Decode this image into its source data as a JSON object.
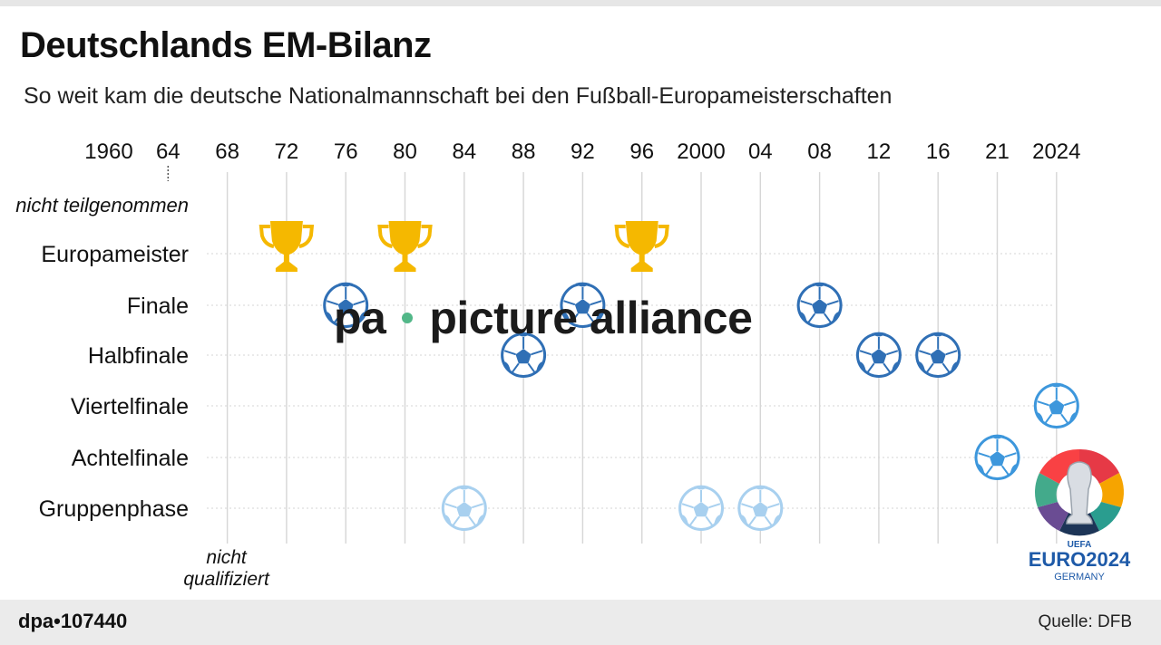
{
  "header": {
    "title": "Deutschlands EM-Bilanz",
    "subtitle": "So weit kam die deutsche Nationalmannschaft bei den Fußball-Europameisterschaften"
  },
  "footer": {
    "id_label": "dpa•107440",
    "source": "Quelle: DFB"
  },
  "watermark": {
    "left": "pa",
    "right": "picture alliance",
    "dot_color": "#52b788"
  },
  "logo": {
    "brand": "UEFA",
    "name": "EURO2024",
    "country": "GERMANY"
  },
  "colors": {
    "trophy": "#f5b800",
    "ball_dark": "#2f6fb5",
    "ball_mid": "#3d97dc",
    "ball_light": "#a8d0ef",
    "grid": "#d6d6d6"
  },
  "chart_data": {
    "type": "scatter",
    "title": "Deutschlands EM-Bilanz",
    "subtitle": "So weit kam die deutsche Nationalmannschaft bei den Fußball-Europameisterschaften",
    "x_tick_labels": [
      "1960",
      "64",
      "68",
      "72",
      "76",
      "80",
      "84",
      "88",
      "92",
      "96",
      "2000",
      "04",
      "08",
      "12",
      "16",
      "21",
      "2024"
    ],
    "years": [
      1960,
      1964,
      1968,
      1972,
      1976,
      1980,
      1984,
      1988,
      1992,
      1996,
      2000,
      2004,
      2008,
      2012,
      2016,
      2021,
      2024
    ],
    "stages": [
      "nicht teilgenommen",
      "Europameister",
      "Finale",
      "Halbfinale",
      "Viertelfinale",
      "Achtelfinale",
      "Gruppenphase"
    ],
    "bottom_label": "nicht qualifiziert",
    "results": [
      {
        "year": 1960,
        "stage": "nicht teilgenommen"
      },
      {
        "year": 1964,
        "stage": "nicht teilgenommen"
      },
      {
        "year": 1968,
        "stage": "nicht qualifiziert"
      },
      {
        "year": 1972,
        "stage": "Europameister"
      },
      {
        "year": 1976,
        "stage": "Finale"
      },
      {
        "year": 1980,
        "stage": "Europameister"
      },
      {
        "year": 1984,
        "stage": "Gruppenphase"
      },
      {
        "year": 1988,
        "stage": "Halbfinale"
      },
      {
        "year": 1992,
        "stage": "Finale"
      },
      {
        "year": 1996,
        "stage": "Europameister"
      },
      {
        "year": 2000,
        "stage": "Gruppenphase"
      },
      {
        "year": 2004,
        "stage": "Gruppenphase"
      },
      {
        "year": 2008,
        "stage": "Finale"
      },
      {
        "year": 2012,
        "stage": "Halbfinale"
      },
      {
        "year": 2016,
        "stage": "Halbfinale"
      },
      {
        "year": 2021,
        "stage": "Achtelfinale"
      },
      {
        "year": 2024,
        "stage": "Viertelfinale"
      }
    ]
  }
}
